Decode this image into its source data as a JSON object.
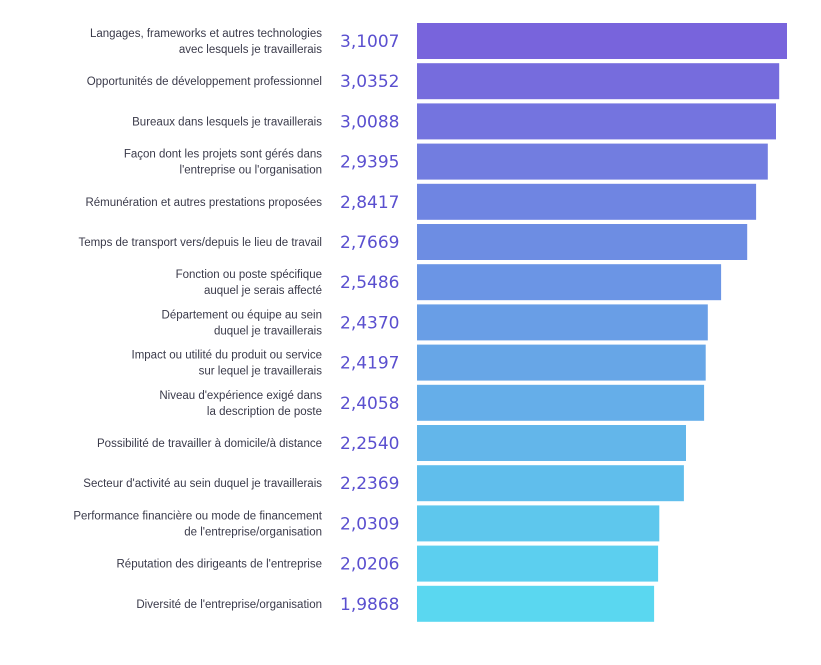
{
  "chart_data": {
    "type": "bar",
    "orientation": "horizontal",
    "title": "",
    "xlabel": "",
    "ylabel": "",
    "xlim": [
      0,
      3.1007
    ],
    "grid": false,
    "value_color_top": "#7864dc",
    "value_color_bottom": "#5ad7f0",
    "value_text_color": "#5a4fcf",
    "categories": [
      [
        "Langages, frameworks et autres technologies",
        "avec lesquels je travaillerais"
      ],
      [
        "Opportunités de développement professionnel"
      ],
      [
        "Bureaux dans lesquels je travaillerais"
      ],
      [
        "Façon dont les projets sont gérés dans",
        "l'entreprise ou l'organisation"
      ],
      [
        "Rémunération et autres prestations proposées"
      ],
      [
        "Temps de transport vers/depuis le lieu de travail"
      ],
      [
        "Fonction ou poste spécifique",
        "auquel je serais affecté"
      ],
      [
        "Département ou équipe au sein",
        "duquel je travaillerais"
      ],
      [
        "Impact ou utilité du produit ou service",
        "sur lequel je travaillerais"
      ],
      [
        "Niveau d'expérience exigé dans",
        "la description de poste"
      ],
      [
        "Possibilité de travailler à domicile/à distance"
      ],
      [
        "Secteur d'activité au sein duquel je travaillerais"
      ],
      [
        "Performance financière ou mode de financement",
        "de l'entreprise/organisation"
      ],
      [
        "Réputation des dirigeants de l'entreprise"
      ],
      [
        "Diversité de l'entreprise/organisation"
      ]
    ],
    "values": [
      3.1007,
      3.0352,
      3.0088,
      2.9395,
      2.8417,
      2.7669,
      2.5486,
      2.437,
      2.4197,
      2.4058,
      2.254,
      2.2369,
      2.0309,
      2.0206,
      1.9868
    ],
    "value_labels": [
      "3,1007",
      "3,0352",
      "3,0088",
      "2,9395",
      "2,8417",
      "2,7669",
      "2,5486",
      "2,4370",
      "2,4197",
      "2,4058",
      "2,2540",
      "2,2369",
      "2,0309",
      "2,0206",
      "1,9868"
    ]
  }
}
